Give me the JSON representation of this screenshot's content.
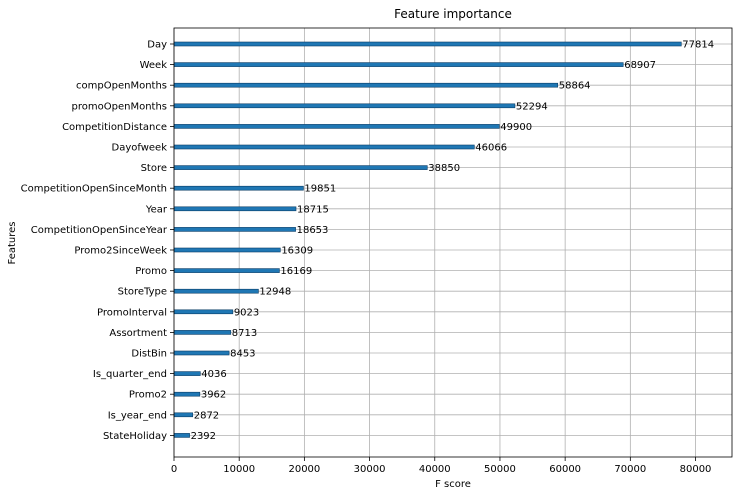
{
  "chart_data": {
    "type": "bar",
    "orientation": "horizontal",
    "title": "Feature importance",
    "xlabel": "F score",
    "ylabel": "Features",
    "categories": [
      "Day",
      "Week",
      "compOpenMonths",
      "promoOpenMonths",
      "CompetitionDistance",
      "Dayofweek",
      "Store",
      "CompetitionOpenSinceMonth",
      "Year",
      "CompetitionOpenSinceYear",
      "Promo2SinceWeek",
      "Promo",
      "StoreType",
      "PromoInterval",
      "Assortment",
      "DistBin",
      "Is_quarter_end",
      "Promo2",
      "Is_year_end",
      "StateHoliday"
    ],
    "values": [
      77814,
      68907,
      58864,
      52294,
      49900,
      46066,
      38850,
      19851,
      18715,
      18653,
      16309,
      16169,
      12948,
      9023,
      8713,
      8453,
      4036,
      3962,
      2872,
      2392
    ],
    "xlim": [
      0,
      85595
    ],
    "xticks": [
      0,
      10000,
      20000,
      30000,
      40000,
      50000,
      60000,
      70000,
      80000
    ],
    "xtick_labels": [
      "0",
      "10000",
      "20000",
      "30000",
      "40000",
      "50000",
      "60000",
      "70000",
      "80000"
    ],
    "grid": true,
    "bar_color": "#1f77b4"
  }
}
